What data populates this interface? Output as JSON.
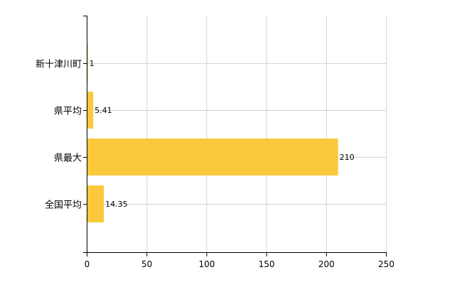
{
  "chart_data": {
    "type": "bar",
    "orientation": "horizontal",
    "categories": [
      "新十津川町",
      "県平均",
      "県最大",
      "全国平均"
    ],
    "values": [
      1,
      5.41,
      210,
      14.35
    ],
    "value_labels": [
      "1",
      "5.41",
      "210",
      "14.35"
    ],
    "xlim": [
      0,
      250
    ],
    "xticks": [
      0,
      50,
      100,
      150,
      200,
      250
    ],
    "xtick_labels": [
      "0",
      "50",
      "100",
      "150",
      "200",
      "250"
    ],
    "grid": true,
    "colors": {
      "bar": "#FBC93C",
      "grid": "#d3d3d3",
      "axis": "#000000"
    }
  }
}
